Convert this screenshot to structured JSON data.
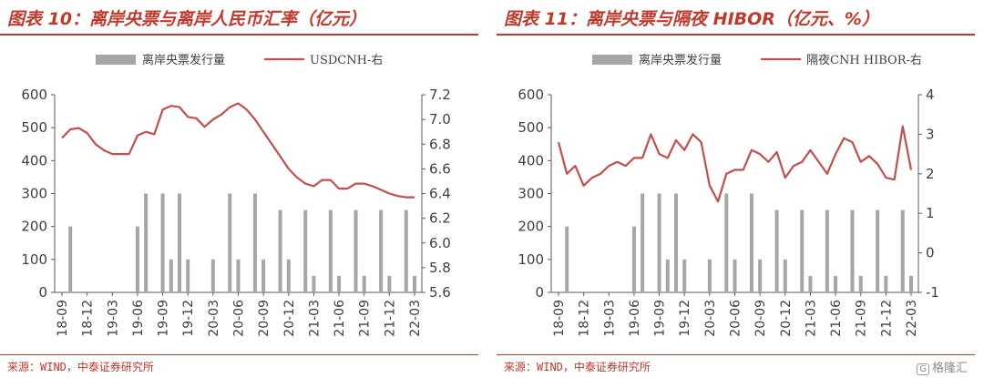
{
  "colors": {
    "accent": "#c0392b",
    "bar": "#a6a6a6",
    "line": "#c0504d",
    "axis": "#595959",
    "text": "#404040"
  },
  "panels": [
    {
      "title": "图表 10：离岸央票与离岸人民币汇率（亿元）",
      "source": "来源：WIND，中泰证券研究所"
    },
    {
      "title": "图表 11：离岸央票与隔夜 HIBOR（亿元、%）",
      "source": "来源：WIND，中泰证券研究所"
    }
  ],
  "brand": {
    "icon": "logo-icon",
    "mark": "G",
    "text": "格隆汇"
  },
  "chart_data": [
    {
      "type": "bar+line",
      "x": [
        "18-09",
        "18-10",
        "18-11",
        "18-12",
        "19-01",
        "19-02",
        "19-03",
        "19-04",
        "19-05",
        "19-06",
        "19-07",
        "19-08",
        "19-09",
        "19-10",
        "19-11",
        "19-12",
        "20-01",
        "20-02",
        "20-03",
        "20-04",
        "20-05",
        "20-06",
        "20-07",
        "20-08",
        "20-09",
        "20-10",
        "20-11",
        "20-12",
        "21-01",
        "21-02",
        "21-03",
        "21-04",
        "21-05",
        "21-06",
        "21-07",
        "21-08",
        "21-09",
        "21-10",
        "21-11",
        "21-12",
        "22-01",
        "22-02",
        "22-03"
      ],
      "tick_labels": [
        "18-09",
        "18-12",
        "19-03",
        "19-06",
        "19-09",
        "19-12",
        "20-03",
        "20-06",
        "20-09",
        "20-12",
        "21-03",
        "21-06",
        "21-09",
        "21-12",
        "22-03"
      ],
      "series": [
        {
          "name": "离岸央票发行量",
          "type": "bar",
          "axis": "left",
          "values": [
            0,
            200,
            0,
            0,
            0,
            0,
            0,
            0,
            0,
            200,
            300,
            0,
            300,
            100,
            300,
            100,
            0,
            0,
            100,
            0,
            300,
            100,
            0,
            300,
            100,
            0,
            250,
            100,
            0,
            250,
            50,
            0,
            250,
            50,
            0,
            250,
            50,
            0,
            250,
            50,
            0,
            250,
            50
          ]
        },
        {
          "name": "USDCNH-右",
          "type": "line",
          "axis": "right",
          "values": [
            6.85,
            6.92,
            6.93,
            6.89,
            6.8,
            6.75,
            6.72,
            6.72,
            6.72,
            6.87,
            6.9,
            6.88,
            7.08,
            7.11,
            7.1,
            7.02,
            7.01,
            6.94,
            7.0,
            7.04,
            7.1,
            7.13,
            7.08,
            7.0,
            6.9,
            6.8,
            6.7,
            6.6,
            6.53,
            6.48,
            6.46,
            6.51,
            6.51,
            6.44,
            6.44,
            6.48,
            6.48,
            6.46,
            6.43,
            6.4,
            6.38,
            6.37,
            6.37
          ]
        }
      ],
      "left_axis": {
        "min": 0,
        "max": 600,
        "ticks": [
          "0",
          "100",
          "200",
          "300",
          "400",
          "500",
          "600"
        ]
      },
      "right_axis": {
        "min": 5.6,
        "max": 7.2,
        "ticks": [
          "5.6",
          "5.8",
          "6.0",
          "6.2",
          "6.4",
          "6.6",
          "6.8",
          "7.0",
          "7.2"
        ]
      },
      "grid": false,
      "legend_position": "top"
    },
    {
      "type": "bar+line",
      "x": [
        "18-09",
        "18-10",
        "18-11",
        "18-12",
        "19-01",
        "19-02",
        "19-03",
        "19-04",
        "19-05",
        "19-06",
        "19-07",
        "19-08",
        "19-09",
        "19-10",
        "19-11",
        "19-12",
        "20-01",
        "20-02",
        "20-03",
        "20-04",
        "20-05",
        "20-06",
        "20-07",
        "20-08",
        "20-09",
        "20-10",
        "20-11",
        "20-12",
        "21-01",
        "21-02",
        "21-03",
        "21-04",
        "21-05",
        "21-06",
        "21-07",
        "21-08",
        "21-09",
        "21-10",
        "21-11",
        "21-12",
        "22-01",
        "22-02",
        "22-03"
      ],
      "tick_labels": [
        "18-09",
        "18-12",
        "19-03",
        "19-06",
        "19-09",
        "19-12",
        "20-03",
        "20-06",
        "20-09",
        "20-12",
        "21-03",
        "21-06",
        "21-09",
        "21-12",
        "22-03"
      ],
      "series": [
        {
          "name": "离岸央票发行量",
          "type": "bar",
          "axis": "left",
          "values": [
            0,
            200,
            0,
            0,
            0,
            0,
            0,
            0,
            0,
            200,
            300,
            0,
            300,
            100,
            300,
            100,
            0,
            0,
            100,
            0,
            300,
            100,
            0,
            300,
            100,
            0,
            250,
            100,
            0,
            250,
            50,
            0,
            250,
            50,
            0,
            250,
            50,
            0,
            250,
            50,
            0,
            250,
            50
          ]
        },
        {
          "name": "隔夜CNH HIBOR-右",
          "type": "line",
          "axis": "right",
          "values": [
            2.8,
            2.0,
            2.2,
            1.7,
            1.9,
            2.0,
            2.2,
            2.3,
            2.2,
            2.4,
            2.4,
            3.0,
            2.5,
            2.4,
            2.85,
            2.6,
            3.0,
            2.8,
            1.7,
            1.3,
            2.0,
            2.1,
            2.1,
            2.6,
            2.5,
            2.3,
            2.55,
            1.9,
            2.2,
            2.3,
            2.6,
            2.3,
            2.0,
            2.5,
            2.9,
            2.8,
            2.3,
            2.45,
            2.25,
            1.9,
            1.85,
            3.2,
            2.1
          ]
        }
      ],
      "left_axis": {
        "min": 0,
        "max": 600,
        "ticks": [
          "0",
          "100",
          "200",
          "300",
          "400",
          "500",
          "600"
        ]
      },
      "right_axis": {
        "min": -1,
        "max": 4,
        "ticks": [
          "-1",
          "0",
          "1",
          "2",
          "3",
          "4"
        ]
      },
      "grid": false,
      "legend_position": "top"
    }
  ]
}
